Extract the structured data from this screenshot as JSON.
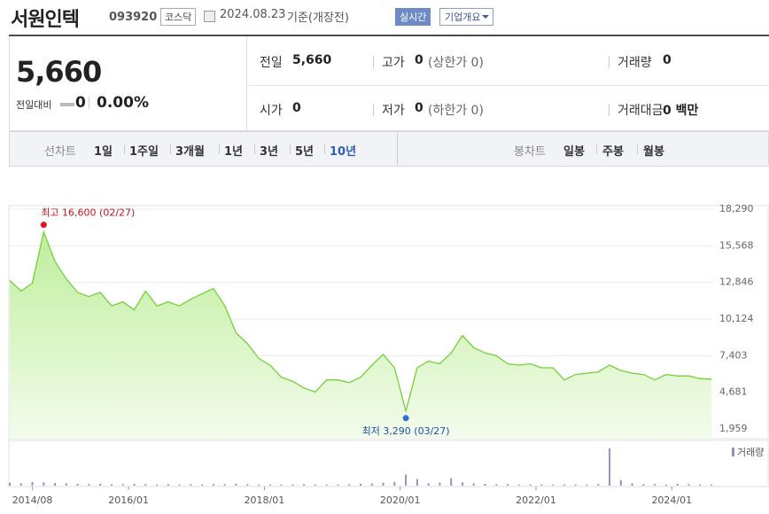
{
  "header": {
    "title": "서원인텍",
    "code": "093920",
    "market": "코스닥",
    "date": "2024.08.23",
    "basis": "기준(개장전)",
    "realtime": "실시간",
    "company": "기업개요"
  },
  "summary": {
    "price": "5,660",
    "change_label": "전일대비",
    "change": "0",
    "change_rate": "0.00%",
    "rows": [
      [
        {
          "label": "전일",
          "value": "5,660"
        },
        {
          "label": "고가",
          "value": "0",
          "note": "(상한가 0)"
        },
        {
          "label": "거래량",
          "value": "0"
        }
      ],
      [
        {
          "label": "시가",
          "value": "0"
        },
        {
          "label": "저가",
          "value": "0",
          "note": "(하한가 0)"
        },
        {
          "label": "거래대금",
          "value": "0 백만"
        }
      ]
    ]
  },
  "tabs": {
    "line_label": "선차트",
    "line": [
      "1일",
      "1주일",
      "3개월",
      "1년",
      "3년",
      "5년",
      "10년"
    ],
    "active": "10년",
    "candle_label": "봉차트",
    "candle": [
      "일봉",
      "주봉",
      "월봉"
    ]
  },
  "chart_data": [
    {
      "type": "area",
      "color": "#74cf3c",
      "x": [
        "2014/04",
        "2014/06",
        "2014/08",
        "2014/10",
        "2014/12",
        "2015/02",
        "2015/04",
        "2015/06",
        "2015/08",
        "2015/10",
        "2015/12",
        "2016/02",
        "2016/04",
        "2016/06",
        "2016/08",
        "2016/10",
        "2016/12",
        "2017/02",
        "2017/04",
        "2017/06",
        "2017/08",
        "2017/10",
        "2017/12",
        "2018/02",
        "2018/04",
        "2018/06",
        "2018/08",
        "2018/10",
        "2018/12",
        "2019/02",
        "2019/04",
        "2019/06",
        "2019/08",
        "2019/10",
        "2019/12",
        "2020/02",
        "2020/04",
        "2020/06",
        "2020/08",
        "2020/10",
        "2020/12",
        "2021/02",
        "2021/04",
        "2021/06",
        "2021/08",
        "2021/10",
        "2021/12",
        "2022/02",
        "2022/04",
        "2022/06",
        "2022/08",
        "2022/10",
        "2022/12",
        "2023/02",
        "2023/04",
        "2023/06",
        "2023/08",
        "2023/10",
        "2023/12",
        "2024/02",
        "2024/04",
        "2024/06",
        "2024/08"
      ],
      "values": [
        13000,
        12200,
        12800,
        16600,
        14400,
        13100,
        12100,
        11800,
        12100,
        11100,
        11400,
        10800,
        12200,
        11100,
        11400,
        11100,
        11600,
        12000,
        12400,
        11100,
        9100,
        8300,
        7200,
        6700,
        5800,
        5500,
        5000,
        4700,
        5600,
        5600,
        5400,
        5800,
        6700,
        7500,
        6500,
        3290,
        6500,
        7000,
        6800,
        7600,
        8900,
        8000,
        7600,
        7400,
        6800,
        6700,
        6800,
        6500,
        6500,
        5600,
        6000,
        6100,
        6200,
        6700,
        6300,
        6100,
        6000,
        5600,
        6000,
        5900,
        5900,
        5700,
        5660
      ],
      "ylim": [
        1959,
        18290
      ],
      "yticks": [
        {
          "value": 1959,
          "label": "1,959"
        },
        {
          "value": 4681,
          "label": "4,681"
        },
        {
          "value": 7403,
          "label": "7,403"
        },
        {
          "value": 10124,
          "label": "10,124"
        },
        {
          "value": 12846,
          "label": "12,846"
        },
        {
          "value": 15568,
          "label": "15,568"
        },
        {
          "value": 18290,
          "label": "18,290"
        }
      ],
      "grid": true,
      "annotations": [
        {
          "label": "최고 16,600 (02/27)",
          "value": 16600,
          "color": "#e0141e"
        },
        {
          "label": "최저 3,290 (03/27)",
          "value": 3290,
          "color": "#2f6fd6"
        }
      ]
    },
    {
      "type": "bar",
      "x": [
        "2014/04",
        "2014/06",
        "2014/08",
        "2014/10",
        "2014/12",
        "2015/02",
        "2015/04",
        "2015/06",
        "2015/08",
        "2015/10",
        "2015/12",
        "2016/02",
        "2016/04",
        "2016/06",
        "2016/08",
        "2016/10",
        "2016/12",
        "2017/02",
        "2017/04",
        "2017/06",
        "2017/08",
        "2017/10",
        "2017/12",
        "2018/02",
        "2018/04",
        "2018/06",
        "2018/08",
        "2018/10",
        "2018/12",
        "2019/02",
        "2019/04",
        "2019/06",
        "2019/08",
        "2019/10",
        "2019/12",
        "2020/02",
        "2020/04",
        "2020/06",
        "2020/08",
        "2020/10",
        "2020/12",
        "2021/02",
        "2021/04",
        "2021/06",
        "2021/08",
        "2021/10",
        "2021/12",
        "2022/02",
        "2022/04",
        "2022/06",
        "2022/08",
        "2022/10",
        "2022/12",
        "2023/02",
        "2023/04",
        "2023/06",
        "2023/08",
        "2023/10",
        "2023/12",
        "2024/02",
        "2024/04",
        "2024/06",
        "2024/08"
      ],
      "series": [
        {
          "name": "거래량",
          "color": "#9b8ec4",
          "values": [
            8,
            6,
            10,
            9,
            7,
            6,
            5,
            4,
            5,
            4,
            4,
            5,
            4,
            3,
            4,
            3,
            4,
            3,
            4,
            4,
            5,
            4,
            3,
            3,
            3,
            3,
            4,
            3,
            3,
            3,
            4,
            5,
            6,
            8,
            10,
            30,
            18,
            6,
            8,
            20,
            9,
            6,
            5,
            4,
            4,
            3,
            3,
            3,
            3,
            3,
            3,
            3,
            4,
            100,
            15,
            6,
            4,
            4,
            3,
            5,
            4,
            3,
            3
          ]
        }
      ],
      "ylim": [
        0,
        100
      ],
      "xticks": [
        "2014/08",
        "2016/01",
        "2018/01",
        "2020/01",
        "2022/01",
        "2024/01"
      ]
    }
  ]
}
